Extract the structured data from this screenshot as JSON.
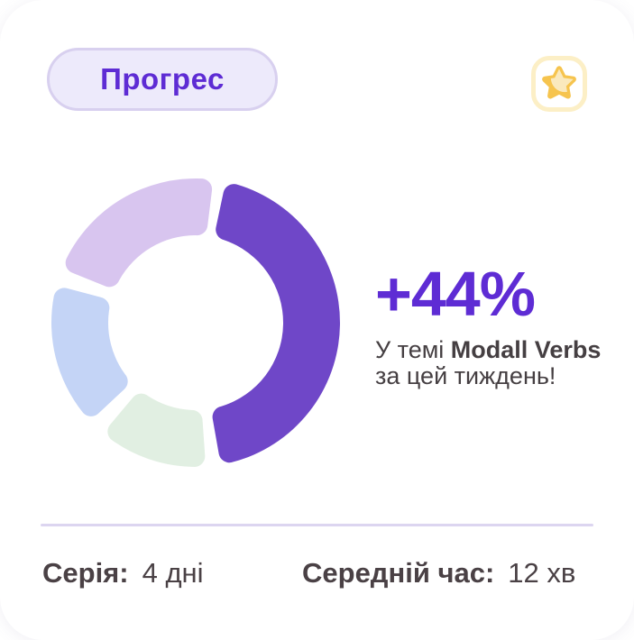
{
  "theme": {
    "card_bg": "#ffffff",
    "accent_purple": "#5e2cd4",
    "subtitle_text": "#453f42",
    "stats_text": "#4a4145",
    "badge_bg": "#edeafb",
    "badge_border": "#d8d0ef",
    "divider": "#dcd5f0"
  },
  "header": {
    "badge_label": "Прогрес"
  },
  "star_badge": {
    "border_color": "#fcefc6",
    "star_color": "#f6c44e",
    "highlight_color": "#fae9bd"
  },
  "chart_data": {
    "type": "pie",
    "variant": "donut",
    "title": "",
    "legend": "none",
    "outer_radius": 160,
    "inner_radius": 97,
    "corner_radius": 12,
    "gap_degrees": 6,
    "segments": [
      {
        "label": "main-purple",
        "percent": 44,
        "color": "#6f47c8",
        "start_deg": 12,
        "end_deg": 170
      },
      {
        "label": "green",
        "percent": 12,
        "color": "#e1efe2",
        "start_deg": 176,
        "end_deg": 220
      },
      {
        "label": "blue",
        "percent": 16,
        "color": "#c4d4f6",
        "start_deg": 227,
        "end_deg": 285
      },
      {
        "label": "lavender",
        "percent": 21,
        "color": "#d8c5ef",
        "start_deg": 292,
        "end_deg": 367
      }
    ]
  },
  "highlight": {
    "value": "+44%",
    "line1_prefix": "У темі ",
    "line1_bold": "Modall Verbs",
    "line2": "за цей тиждень!"
  },
  "stats": {
    "streak_label": "Серія:",
    "streak_value": "4 дні",
    "avg_label": "Середній час:",
    "avg_value": "12 хв"
  }
}
